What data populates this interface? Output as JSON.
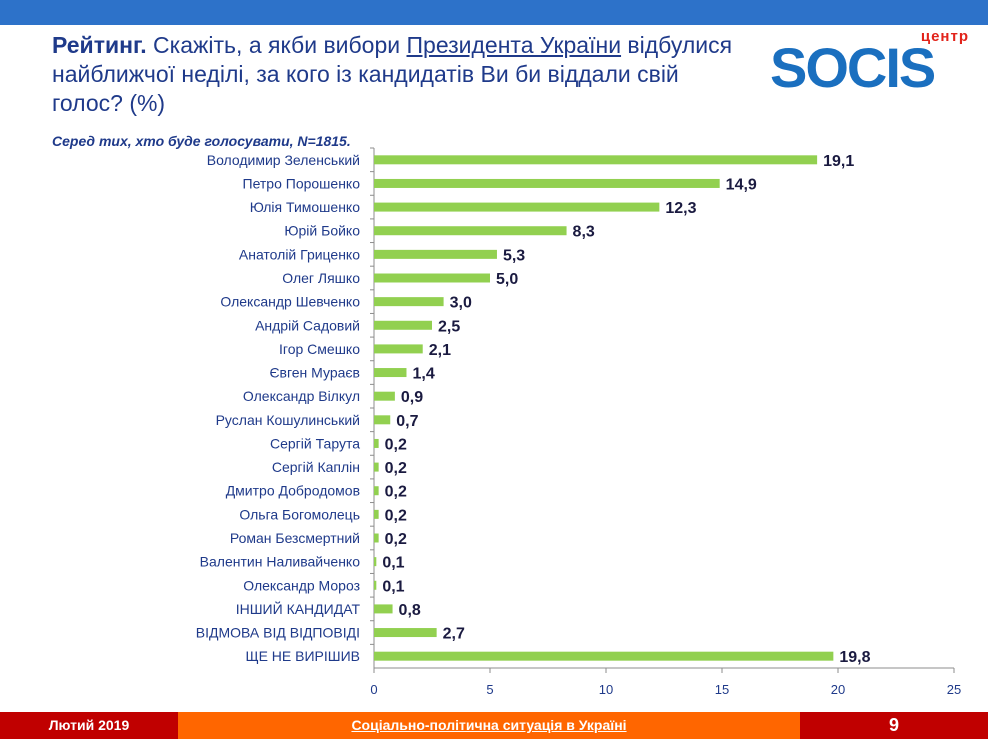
{
  "header": {
    "title_bold": "Рейтинг.",
    "title_part1": " Скажіть, а якби вибори ",
    "title_underlined": "Президента України",
    "title_part2": " відбулися найближчої неділі, за кого із кандидатів Ви би віддали свій голос? (%)",
    "subtitle": "Серед тих, хто буде голосувати, N=1815."
  },
  "logo": {
    "small_text": "центр",
    "word": "SOCIS"
  },
  "footer": {
    "left": "Лютий 2019",
    "center": "Соціально-політична ситуація в Україні",
    "page": "9"
  },
  "colors": {
    "bar": "#92d050",
    "accent": "#2d72c9",
    "footer_red": "#c00000",
    "footer_orange": "#ff6600",
    "text": "#1f3a8a"
  },
  "chart_data": {
    "type": "bar",
    "orientation": "horizontal",
    "categories": [
      "Володимир Зеленський",
      "Петро Порошенко",
      "Юлія Тимошенко",
      "Юрій Бойко",
      "Анатолій Гриценко",
      "Олег Ляшко",
      "Олександр Шевченко",
      "Андрій Садовий",
      "Ігор Смешко",
      "Євген Мураєв",
      "Олександр Вілкул",
      "Руслан Кошулинський",
      "Сергій Тарута",
      "Сергій Каплін",
      "Дмитро Добродомов",
      "Ольга Богомолець",
      "Роман Безсмертний",
      "Валентин Наливайченко",
      "Олександр Мороз",
      "ІНШИЙ КАНДИДАТ",
      "ВІДМОВА ВІД ВІДПОВІДІ",
      "ЩЕ НЕ ВИРІШИВ"
    ],
    "values": [
      19.1,
      14.9,
      12.3,
      8.3,
      5.3,
      5.0,
      3.0,
      2.5,
      2.1,
      1.4,
      0.9,
      0.7,
      0.2,
      0.2,
      0.2,
      0.2,
      0.2,
      0.1,
      0.1,
      0.8,
      2.7,
      19.8
    ],
    "value_labels": [
      "19,1",
      "14,9",
      "12,3",
      "8,3",
      "5,3",
      "5,0",
      "3,0",
      "2,5",
      "2,1",
      "1,4",
      "0,9",
      "0,7",
      "0,2",
      "0,2",
      "0,2",
      "0,2",
      "0,2",
      "0,1",
      "0,1",
      "0,8",
      "2,7",
      "19,8"
    ],
    "xlim": [
      0,
      25
    ],
    "xticks": [
      0,
      5,
      10,
      15,
      20,
      25
    ],
    "grid": false
  }
}
